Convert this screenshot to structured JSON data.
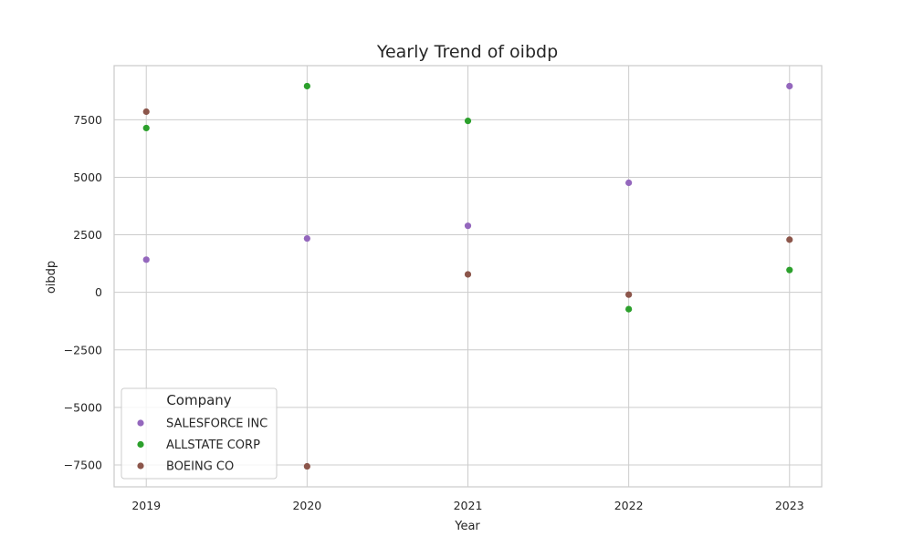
{
  "chart_data": {
    "type": "scatter",
    "title": "Yearly Trend of oibdp",
    "xlabel": "Year",
    "ylabel": "oibdp",
    "categories": [
      "2019",
      "2020",
      "2021",
      "2022",
      "2023"
    ],
    "xlim": [
      2018.8,
      2023.2
    ],
    "ylim": [
      -8450,
      9850
    ],
    "y_ticks": [
      {
        "value": -7500,
        "label": "−7500"
      },
      {
        "value": -5000,
        "label": "−5000"
      },
      {
        "value": -2500,
        "label": "−2500"
      },
      {
        "value": 0,
        "label": "0"
      },
      {
        "value": 2500,
        "label": "2500"
      },
      {
        "value": 5000,
        "label": "5000"
      },
      {
        "value": 7500,
        "label": "7500"
      }
    ],
    "grid": true,
    "legend": {
      "title": "Company",
      "placement": "lower-left"
    },
    "series": [
      {
        "name": "SALESFORCE INC",
        "color": "#9467bd",
        "values": [
          1420,
          2340,
          2890,
          4760,
          8960
        ]
      },
      {
        "name": "ALLSTATE CORP",
        "color": "#2ca02c",
        "values": [
          7140,
          8960,
          7450,
          -730,
          970
        ]
      },
      {
        "name": "BOEING CO",
        "color": "#8c564b",
        "values": [
          7850,
          -7560,
          780,
          -100,
          2290
        ]
      }
    ]
  }
}
